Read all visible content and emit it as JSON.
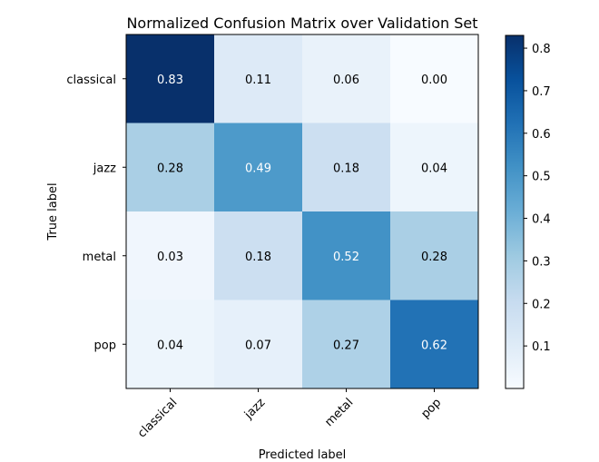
{
  "chart_data": {
    "type": "heatmap",
    "title": "Normalized Confusion Matrix over Validation Set",
    "xlabel": "Predicted label",
    "ylabel": "True label",
    "x_categories": [
      "classical",
      "jazz",
      "metal",
      "pop"
    ],
    "y_categories": [
      "classical",
      "jazz",
      "metal",
      "pop"
    ],
    "values": [
      [
        0.83,
        0.11,
        0.06,
        0.0
      ],
      [
        0.28,
        0.49,
        0.18,
        0.04
      ],
      [
        0.03,
        0.18,
        0.52,
        0.28
      ],
      [
        0.04,
        0.07,
        0.27,
        0.62
      ]
    ],
    "value_labels": [
      [
        "0.83",
        "0.11",
        "0.06",
        "0.00"
      ],
      [
        "0.28",
        "0.49",
        "0.18",
        "0.04"
      ],
      [
        "0.03",
        "0.18",
        "0.52",
        "0.28"
      ],
      [
        "0.04",
        "0.07",
        "0.27",
        "0.62"
      ]
    ],
    "colormap": "Blues",
    "colorbar": {
      "range": [
        0.0,
        0.83
      ],
      "ticks": [
        0.1,
        0.2,
        0.3,
        0.4,
        0.5,
        0.6,
        0.7,
        0.8
      ],
      "tick_labels": [
        "0.1",
        "0.2",
        "0.3",
        "0.4",
        "0.5",
        "0.6",
        "0.7",
        "0.8"
      ]
    },
    "text_colors": {
      "dark_bg": "#ffffff",
      "light_bg": "#000000"
    },
    "grid": false
  }
}
